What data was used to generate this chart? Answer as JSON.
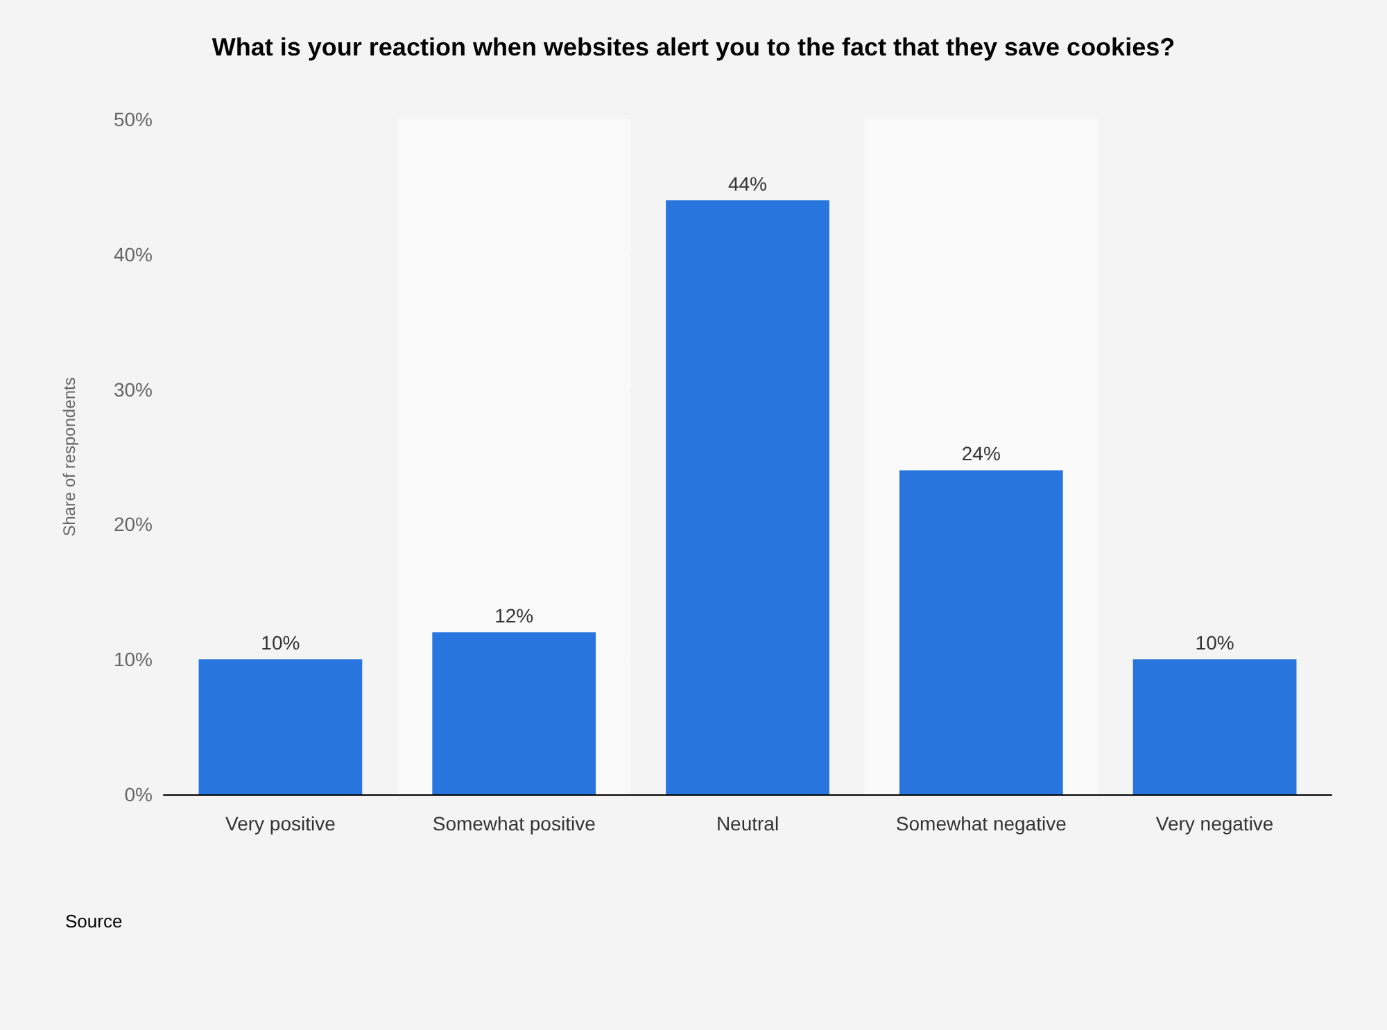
{
  "chart_data": {
    "type": "bar",
    "title": "What is your reaction when websites alert you to the fact that they save cookies?",
    "ylabel": "Share of respondents",
    "categories": [
      "Very positive",
      "Somewhat positive",
      "Neutral",
      "Somewhat negative",
      "Very negative"
    ],
    "values": [
      10,
      12,
      44,
      24,
      10
    ],
    "value_labels": [
      "10%",
      "12%",
      "44%",
      "24%",
      "10%"
    ],
    "color": "#2876dd",
    "ylim": [
      0,
      50
    ],
    "yticks": [
      {
        "value": 0,
        "label": "0%"
      },
      {
        "value": 10,
        "label": "10%"
      },
      {
        "value": 20,
        "label": "20%"
      },
      {
        "value": 30,
        "label": "30%"
      },
      {
        "value": 40,
        "label": "40%"
      },
      {
        "value": 50,
        "label": "50%"
      }
    ],
    "grid": "y",
    "annotations": [
      "Source"
    ]
  }
}
